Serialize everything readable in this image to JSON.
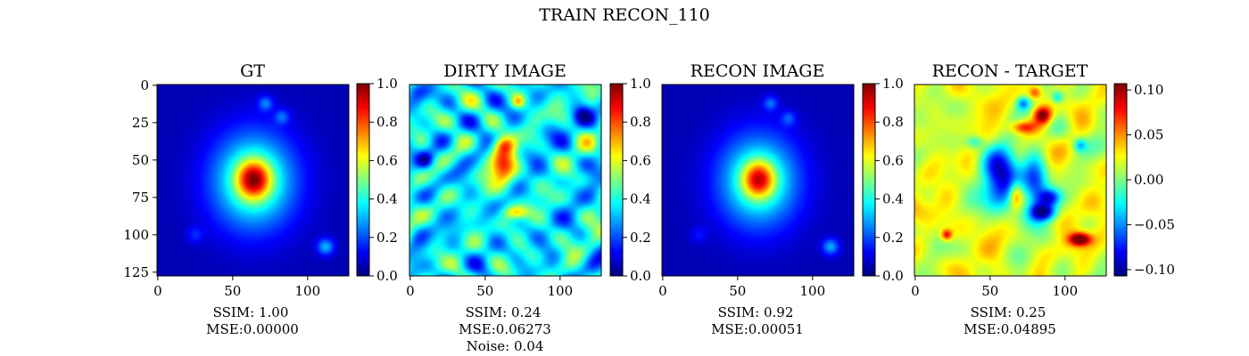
{
  "figure": {
    "suptitle": "TRAIN RECON_110"
  },
  "colormap": "jet",
  "chart_data": [
    {
      "type": "heatmap",
      "title": "GT",
      "image_size": [
        128,
        128
      ],
      "x_ticks": [
        0,
        50,
        100
      ],
      "y_ticks": [
        0,
        25,
        50,
        75,
        100,
        125
      ],
      "colorbar": {
        "range": [
          0.0,
          1.0
        ],
        "ticks": [
          "0.0",
          "0.2",
          "0.4",
          "0.6",
          "0.8",
          "1.0"
        ]
      },
      "metrics": [
        "SSIM: 1.00",
        "MSE:0.00000"
      ],
      "blobs": [
        {
          "x": 64,
          "y": 64,
          "sx": 20,
          "sy": 23,
          "v": 0.42
        },
        {
          "x": 64,
          "y": 63,
          "sx": 8,
          "sy": 9,
          "v": 0.55
        },
        {
          "x": 72,
          "y": 12,
          "sx": 3.5,
          "sy": 3.5,
          "v": 0.18
        },
        {
          "x": 83,
          "y": 21,
          "sx": 3.5,
          "sy": 3.5,
          "v": 0.15
        },
        {
          "x": 112,
          "y": 108,
          "sx": 4,
          "sy": 4,
          "v": 0.25
        },
        {
          "x": 25,
          "y": 100,
          "sx": 4,
          "sy": 4,
          "v": 0.1
        }
      ],
      "background": 0.05
    },
    {
      "type": "heatmap",
      "title": "DIRTY IMAGE",
      "image_size": [
        128,
        128
      ],
      "x_ticks": [
        0,
        50,
        100
      ],
      "colorbar": {
        "range": [
          0.0,
          1.0
        ],
        "ticks": [
          "0.0",
          "0.2",
          "0.4",
          "0.6",
          "0.8",
          "1.0"
        ]
      },
      "metrics": [
        "SSIM: 0.24",
        "MSE:0.06273",
        "Noise: 0.04"
      ],
      "blobs": [
        {
          "x": 62,
          "y": 54,
          "sx": 6,
          "sy": 10,
          "v": 0.45
        },
        {
          "x": 63,
          "y": 40,
          "sx": 5,
          "sy": 4,
          "v": 0.25
        },
        {
          "x": 70,
          "y": 85,
          "sx": 6,
          "sy": 3,
          "v": 0.25
        },
        {
          "x": 72,
          "y": 11,
          "sx": 3,
          "sy": 3,
          "v": 0.25
        },
        {
          "x": 10,
          "y": 50,
          "sx": 4,
          "sy": 4,
          "v": -0.25
        },
        {
          "x": 115,
          "y": 20,
          "sx": 4,
          "sy": 4,
          "v": -0.2
        }
      ],
      "background": 0.36,
      "noise_amp": 0.2
    },
    {
      "type": "heatmap",
      "title": "RECON IMAGE",
      "image_size": [
        128,
        128
      ],
      "x_ticks": [
        0,
        50,
        100
      ],
      "colorbar": {
        "range": [
          0.0,
          1.0
        ],
        "ticks": [
          "0.0",
          "0.2",
          "0.4",
          "0.6",
          "0.8",
          "1.0"
        ]
      },
      "metrics": [
        "SSIM: 0.92",
        "MSE:0.00051"
      ],
      "blobs": [
        {
          "x": 64,
          "y": 64,
          "sx": 19,
          "sy": 22,
          "v": 0.4
        },
        {
          "x": 64,
          "y": 63,
          "sx": 7.5,
          "sy": 8.5,
          "v": 0.5
        },
        {
          "x": 72,
          "y": 12,
          "sx": 3.5,
          "sy": 3.5,
          "v": 0.17
        },
        {
          "x": 84,
          "y": 22,
          "sx": 3.5,
          "sy": 3.5,
          "v": 0.14
        },
        {
          "x": 112,
          "y": 108,
          "sx": 4,
          "sy": 4,
          "v": 0.24
        },
        {
          "x": 24,
          "y": 100,
          "sx": 4,
          "sy": 4,
          "v": 0.08
        }
      ],
      "background": 0.05
    },
    {
      "type": "heatmap",
      "title": "RECON - TARGET",
      "image_size": [
        128,
        128
      ],
      "x_ticks": [
        0,
        50,
        100
      ],
      "colorbar": {
        "range": [
          -0.107,
          0.107
        ],
        "ticks": [
          "0.10",
          "0.05",
          "0.00",
          "−0.05",
          "−0.10"
        ]
      },
      "metrics": [
        "SSIM: 0.25",
        "MSE:0.04895"
      ],
      "blobs": [
        {
          "x": 58,
          "y": 62,
          "sx": 9,
          "sy": 14,
          "v": -0.11
        },
        {
          "x": 80,
          "y": 66,
          "sx": 6,
          "sy": 14,
          "v": -0.09
        },
        {
          "x": 90,
          "y": 75,
          "sx": 5,
          "sy": 4,
          "v": -0.08
        },
        {
          "x": 86,
          "y": 85,
          "sx": 6,
          "sy": 4,
          "v": -0.1
        },
        {
          "x": 67,
          "y": 73,
          "sx": 3,
          "sy": 6,
          "v": 0.05
        },
        {
          "x": 85,
          "y": 20,
          "sx": 4,
          "sy": 4,
          "v": 0.09
        },
        {
          "x": 72,
          "y": 28,
          "sx": 6,
          "sy": 3,
          "v": 0.06
        },
        {
          "x": 110,
          "y": 103,
          "sx": 5,
          "sy": 3,
          "v": 0.11
        },
        {
          "x": 72,
          "y": 12,
          "sx": 3,
          "sy": 3,
          "v": -0.06
        },
        {
          "x": 95,
          "y": 8,
          "sx": 3,
          "sy": 3,
          "v": -0.05
        },
        {
          "x": 110,
          "y": 40,
          "sx": 3,
          "sy": 3,
          "v": -0.05
        },
        {
          "x": 40,
          "y": 38,
          "sx": 4,
          "sy": 3,
          "v": -0.04
        },
        {
          "x": 21,
          "y": 100,
          "sx": 2.5,
          "sy": 2.5,
          "v": 0.07
        },
        {
          "x": 80,
          "y": 5,
          "sx": 3,
          "sy": 3,
          "v": 0.05
        }
      ],
      "background": 0.02,
      "noise_amp": 0.02
    }
  ]
}
